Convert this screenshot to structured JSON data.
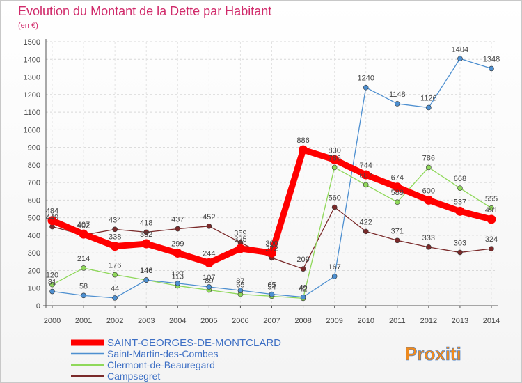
{
  "chart_data": {
    "type": "line",
    "title": "Evolution du Montant de la Dette par Habitant",
    "subtitle": "(en €)",
    "x": [
      "2000",
      "2001",
      "2002",
      "2003",
      "2004",
      "2005",
      "2006",
      "2007",
      "2008",
      "2009",
      "2010",
      "2011",
      "2012",
      "2013",
      "2014"
    ],
    "ylim": [
      0,
      1500
    ],
    "yticks": [
      0,
      100,
      200,
      300,
      400,
      500,
      600,
      700,
      800,
      900,
      1000,
      1100,
      1200,
      1300,
      1400,
      1500
    ],
    "grid": true,
    "legend_position": "bottom-left",
    "series": [
      {
        "name": "SAINT-GEORGES-DE-MONTCLARD",
        "color": "#ff0000",
        "values": [
          484,
          407,
          338,
          352,
          299,
          244,
          325,
          300,
          886,
          830,
          744,
          674,
          600,
          537,
          491
        ]
      },
      {
        "name": "Saint-Martin-des-Combes",
        "color": "#4d8fd0",
        "values": [
          81,
          58,
          44,
          146,
          127,
          107,
          87,
          65,
          49,
          167,
          1240,
          1148,
          1126,
          1404,
          1348
        ]
      },
      {
        "name": "Clermont-de-Beauregard",
        "color": "#8fd85a",
        "values": [
          120,
          214,
          176,
          146,
          113,
          89,
          65,
          54,
          42,
          786,
          687,
          589,
          786,
          668,
          555
        ]
      },
      {
        "name": "Campsegret",
        "color": "#7a2a2a",
        "values": [
          449,
          402,
          434,
          418,
          437,
          452,
          359,
          272,
          209,
          560,
          422,
          371,
          333,
          303,
          324
        ]
      }
    ]
  },
  "brand": {
    "logo_text": "Proxiti"
  }
}
